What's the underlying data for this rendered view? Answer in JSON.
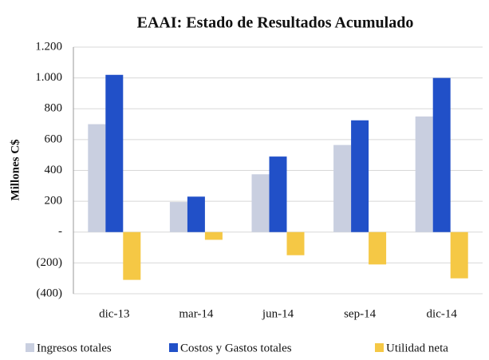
{
  "chart_data": {
    "type": "bar",
    "title": "EAAI: Estado de Resultados Acumulado",
    "y_label": "Millones C$",
    "categories": [
      "dic-13",
      "mar-14",
      "jun-14",
      "sep-14",
      "dic-14"
    ],
    "series": [
      {
        "name": "Ingresos totales",
        "color": "#c9cfe0",
        "values": [
          700,
          195,
          375,
          565,
          750
        ]
      },
      {
        "name": "Costos y Gastos totales",
        "color": "#2150c8",
        "values": [
          1020,
          230,
          490,
          725,
          1000
        ]
      },
      {
        "name": "Utilidad neta",
        "color": "#f5c845",
        "values": [
          -310,
          -50,
          -150,
          -210,
          -300
        ]
      }
    ],
    "ylim": [
      -400,
      1200
    ],
    "yticks": [
      {
        "value": -400,
        "label": "(400)"
      },
      {
        "value": -200,
        "label": "(200)"
      },
      {
        "value": 0,
        "label": "-"
      },
      200,
      400,
      600,
      800,
      {
        "value": 1000,
        "label": "1.000"
      },
      {
        "value": 1200,
        "label": "1.200"
      }
    ],
    "grid": true,
    "legend": "bottom"
  }
}
